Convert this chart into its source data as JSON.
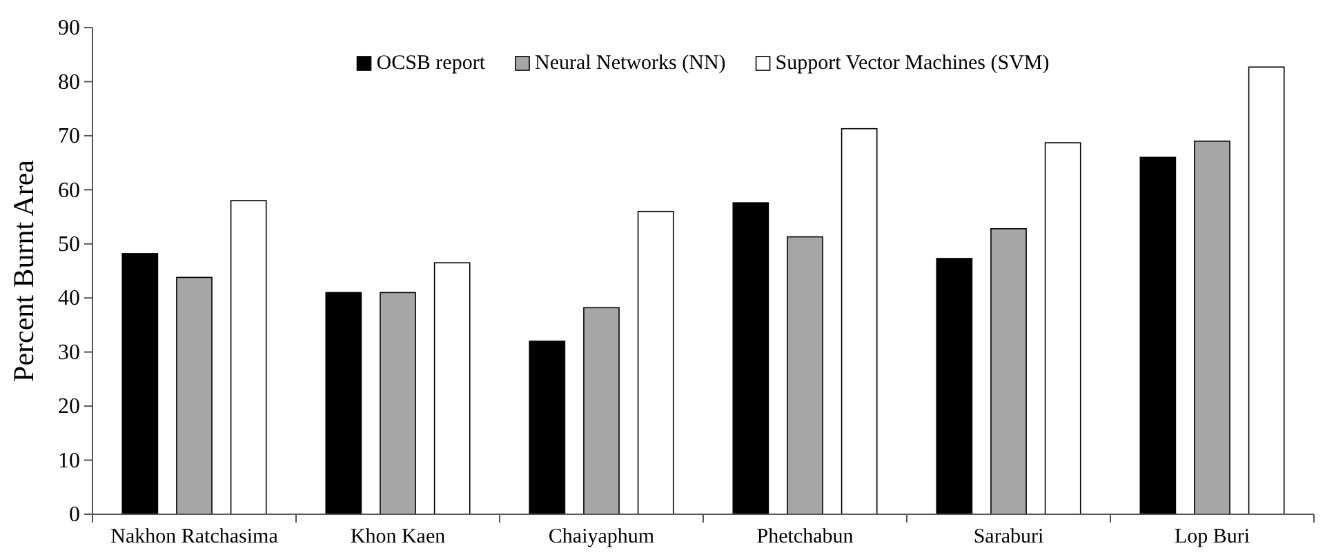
{
  "chart_data": {
    "type": "bar",
    "ylabel": "Percent Burnt Area",
    "categories": [
      "Nakhon Ratchasima",
      "Khon Kaen",
      "Chaiyaphum",
      "Phetchabun",
      "Saraburi",
      "Lop Buri"
    ],
    "series": [
      {
        "name": "OCSB report",
        "color": "#000000",
        "values": [
          48.2,
          41,
          32,
          57.6,
          47.3,
          66
        ]
      },
      {
        "name": "Neural Networks (NN)",
        "color": "#a6a6a6",
        "values": [
          43.8,
          41,
          38.2,
          51.3,
          52.8,
          69
        ]
      },
      {
        "name": "Support Vector Machines (SVM)",
        "color": "#ffffff",
        "values": [
          58,
          46.5,
          56,
          71.3,
          68.7,
          82.7
        ]
      }
    ],
    "ylim": [
      0,
      90
    ],
    "yticks": [
      0,
      10,
      20,
      30,
      40,
      50,
      60,
      70,
      80,
      90
    ],
    "grid": false,
    "legend": "top"
  }
}
